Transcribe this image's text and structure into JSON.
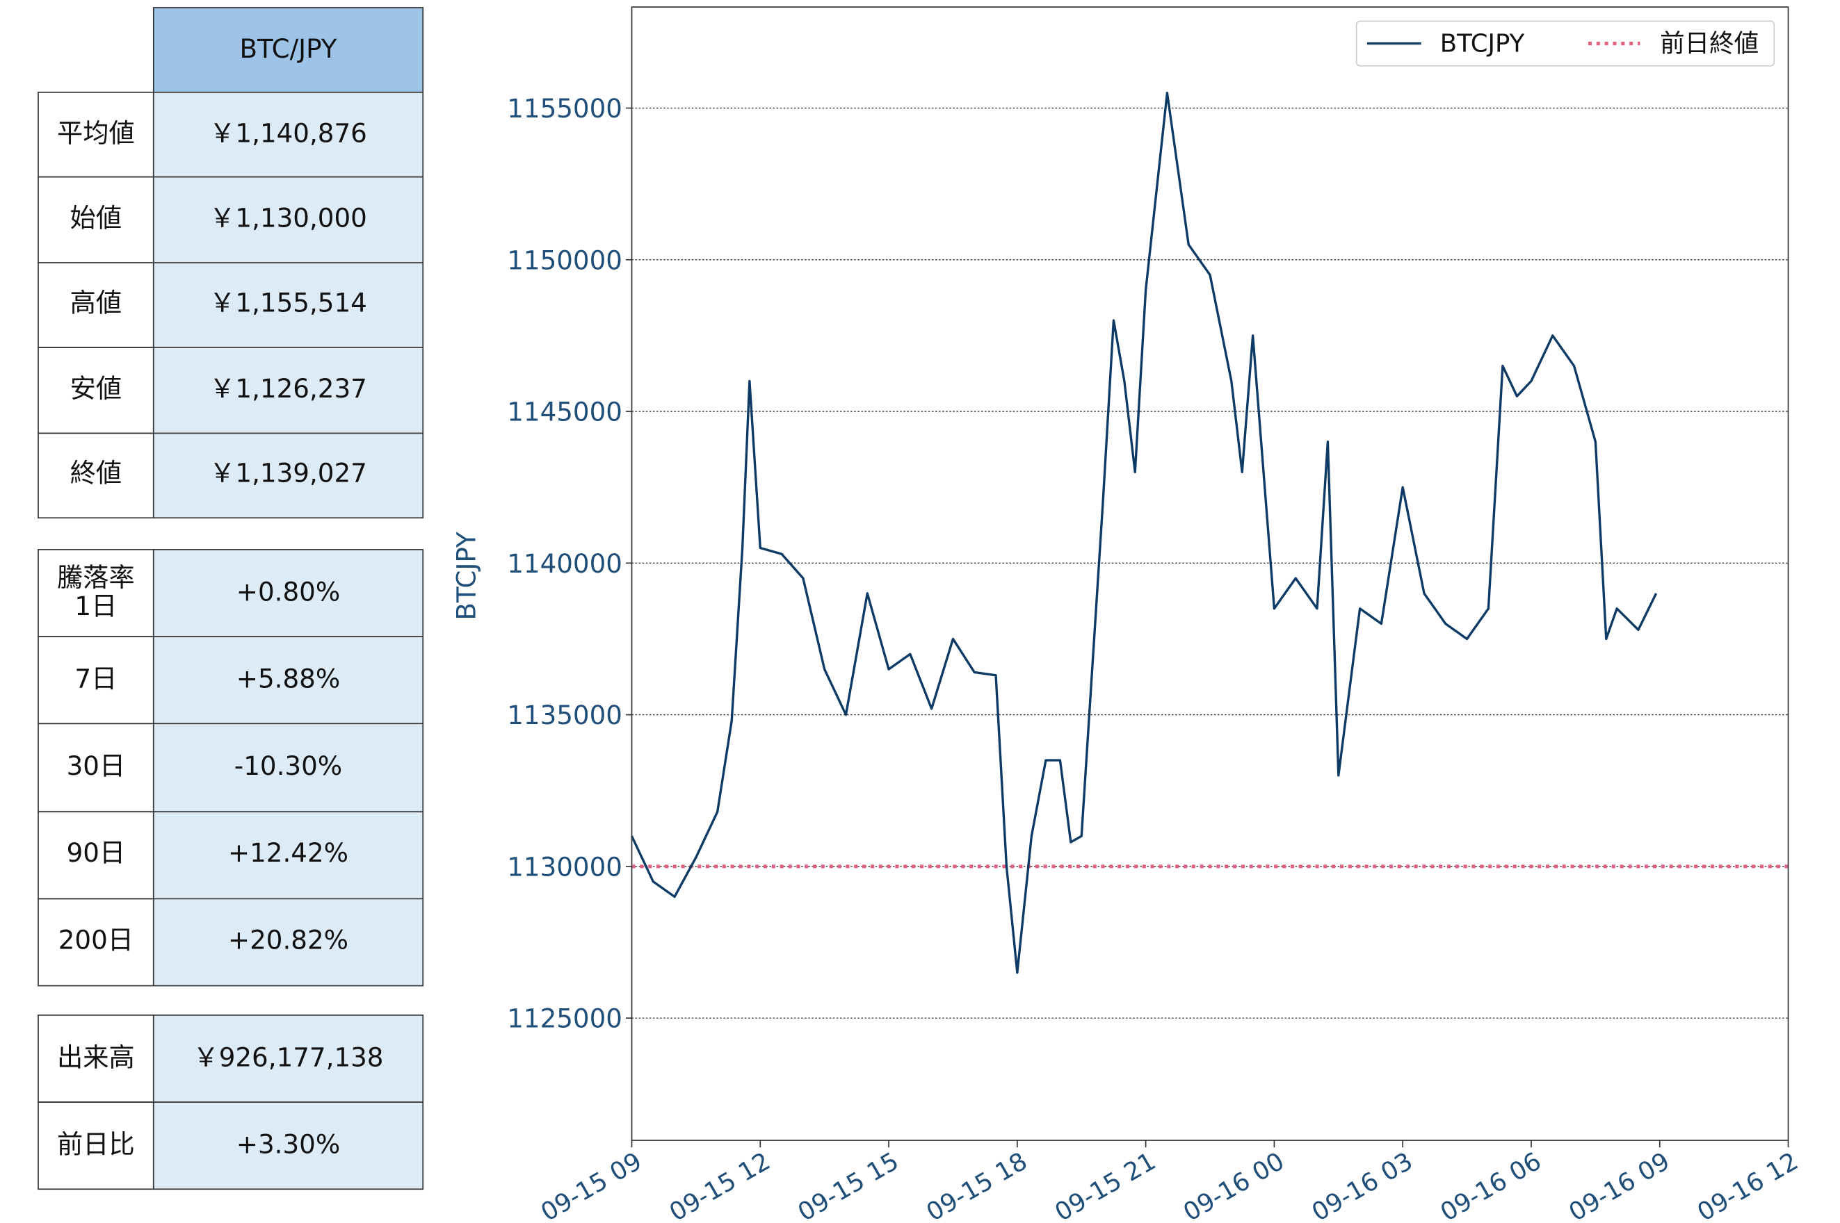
{
  "summary": {
    "header": "BTC/JPY",
    "rows": [
      [
        "平均値",
        "￥1,140,876"
      ],
      [
        "始値",
        "￥1,130,000"
      ],
      [
        "高値",
        "￥1,155,514"
      ],
      [
        "安値",
        "￥1,126,237"
      ],
      [
        "終値",
        "￥1,139,027"
      ]
    ]
  },
  "returns": {
    "rows": [
      [
        "騰落率\n1日",
        "+0.80%"
      ],
      [
        "7日",
        "+5.88%"
      ],
      [
        "30日",
        "-10.30%"
      ],
      [
        "90日",
        "+12.42%"
      ],
      [
        "200日",
        "+20.82%"
      ]
    ]
  },
  "volume": {
    "rows": [
      [
        "出来高",
        "￥926,177,138"
      ],
      [
        "前日比",
        "+3.30%"
      ]
    ]
  },
  "chart_data": {
    "type": "line",
    "ylabel": "BTCJPY",
    "grid": true,
    "legend": "upper right",
    "x": [
      "09-15 09:00",
      "09-15 09:30",
      "09-15 10:00",
      "09-15 10:30",
      "09-15 11:00",
      "09-15 11:20",
      "09-15 11:35",
      "09-15 11:45",
      "09-15 12:00",
      "09-15 12:30",
      "09-15 13:00",
      "09-15 13:30",
      "09-15 14:00",
      "09-15 14:30",
      "09-15 15:00",
      "09-15 15:30",
      "09-15 16:00",
      "09-15 16:30",
      "09-15 17:00",
      "09-15 17:30",
      "09-15 17:45",
      "09-15 18:00",
      "09-15 18:20",
      "09-15 18:40",
      "09-15 19:00",
      "09-15 19:15",
      "09-15 19:30",
      "09-15 20:00",
      "09-15 20:15",
      "09-15 20:30",
      "09-15 20:45",
      "09-15 21:00",
      "09-15 21:30",
      "09-15 22:00",
      "09-15 22:30",
      "09-15 23:00",
      "09-15 23:15",
      "09-15 23:30",
      "09-16 00:00",
      "09-16 00:30",
      "09-16 01:00",
      "09-16 01:15",
      "09-16 01:30",
      "09-16 02:00",
      "09-16 02:30",
      "09-16 03:00",
      "09-16 03:30",
      "09-16 04:00",
      "09-16 04:30",
      "09-16 05:00",
      "09-16 05:20",
      "09-16 05:40",
      "09-16 06:00",
      "09-16 06:30",
      "09-16 07:00",
      "09-16 07:30",
      "09-16 07:45",
      "09-16 08:00",
      "09-16 08:30",
      "09-16 08:55"
    ],
    "series": [
      {
        "name": "BTCJPY",
        "color": "#0d3b66",
        "values": [
          1131000,
          1129500,
          1129000,
          1130300,
          1131800,
          1134800,
          1140500,
          1146000,
          1140500,
          1140300,
          1139500,
          1136500,
          1135000,
          1139000,
          1136500,
          1137000,
          1135200,
          1137500,
          1136400,
          1136300,
          1130000,
          1126500,
          1131000,
          1133500,
          1133500,
          1130800,
          1131000,
          1142000,
          1148000,
          1146000,
          1143000,
          1149000,
          1155500,
          1150500,
          1149500,
          1146000,
          1143000,
          1147500,
          1138500,
          1139500,
          1138500,
          1144000,
          1133000,
          1138500,
          1138000,
          1142500,
          1139000,
          1138000,
          1137500,
          1138500,
          1146500,
          1145500,
          1146000,
          1147500,
          1146500,
          1144000,
          1137500,
          1138500,
          1137800,
          1139000
        ]
      }
    ],
    "reference_lines": [
      {
        "name": "前日終値",
        "value": 1130000,
        "color": "#e0607e"
      }
    ],
    "xlim": [
      "09-15 09:00",
      "09-16 12:00"
    ],
    "xticks": [
      {
        "value": "09-15 09:00",
        "label": "09-15 09"
      },
      {
        "value": "09-15 12:00",
        "label": "09-15 12"
      },
      {
        "value": "09-15 15:00",
        "label": "09-15 15"
      },
      {
        "value": "09-15 18:00",
        "label": "09-15 18"
      },
      {
        "value": "09-15 21:00",
        "label": "09-15 21"
      },
      {
        "value": "09-16 00:00",
        "label": "09-16 00"
      },
      {
        "value": "09-16 03:00",
        "label": "09-16 03"
      },
      {
        "value": "09-16 06:00",
        "label": "09-16 06"
      },
      {
        "value": "09-16 09:00",
        "label": "09-16 09"
      },
      {
        "value": "09-16 12:00",
        "label": "09-16 12"
      }
    ],
    "ylim": [
      1120970,
      1158330
    ],
    "yticks": [
      1125000,
      1130000,
      1135000,
      1140000,
      1145000,
      1150000,
      1155000
    ]
  }
}
